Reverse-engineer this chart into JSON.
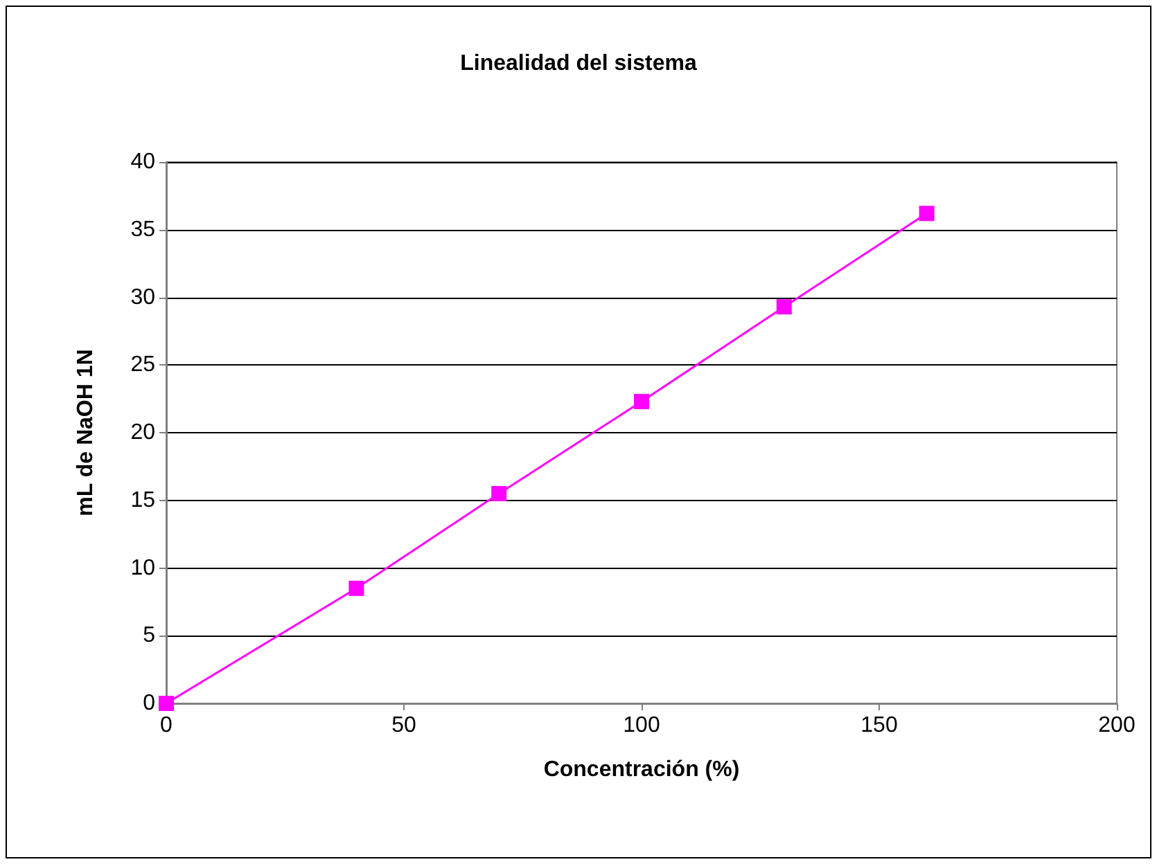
{
  "chart_data": {
    "type": "line",
    "title": "Linealidad del sistema",
    "xlabel": "Concentración (%)",
    "ylabel": "mL de NaOH 1N",
    "x": [
      0,
      40,
      70,
      100,
      130,
      160
    ],
    "series": [
      {
        "color": "#ff00ff",
        "values": [
          0,
          8.5,
          15.5,
          22.3,
          29.3,
          36.2
        ]
      }
    ],
    "xlim": [
      0,
      200
    ],
    "xticks": [
      0,
      50,
      100,
      150,
      200
    ],
    "ylim": [
      0,
      40
    ],
    "yticks": [
      0,
      5,
      10,
      15,
      20,
      25,
      30,
      35,
      40
    ],
    "grid": "y",
    "marker": "square",
    "line_style": "solid"
  }
}
